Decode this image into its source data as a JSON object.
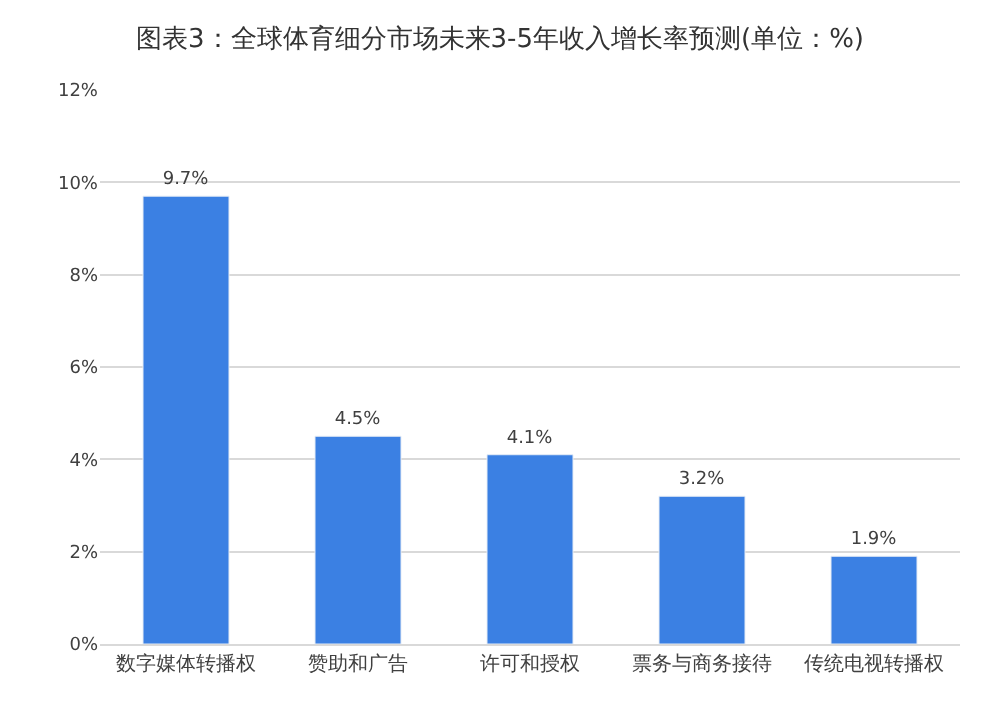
{
  "chart_data": {
    "type": "bar",
    "title": "图表3：全球体育细分市场未来3-5年收入增长率预测(单位：%)",
    "categories": [
      "数字媒体转播权",
      "赞助和广告",
      "许可和授权",
      "票务与商务接待",
      "传统电视转播权"
    ],
    "values": [
      9.7,
      4.5,
      4.1,
      3.2,
      1.9
    ],
    "value_labels": [
      "9.7%",
      "4.5%",
      "4.1%",
      "3.2%",
      "1.9%"
    ],
    "color": "#3b80e3",
    "ylim": [
      0,
      12
    ],
    "yticks": [
      {
        "value": 0,
        "label": "0%"
      },
      {
        "value": 2,
        "label": "2%"
      },
      {
        "value": 4,
        "label": "4%"
      },
      {
        "value": 6,
        "label": "6%"
      },
      {
        "value": 8,
        "label": "8%"
      },
      {
        "value": 10,
        "label": "10%"
      },
      {
        "value": 12,
        "label": "12%"
      }
    ],
    "grid": "y",
    "legend": false
  }
}
